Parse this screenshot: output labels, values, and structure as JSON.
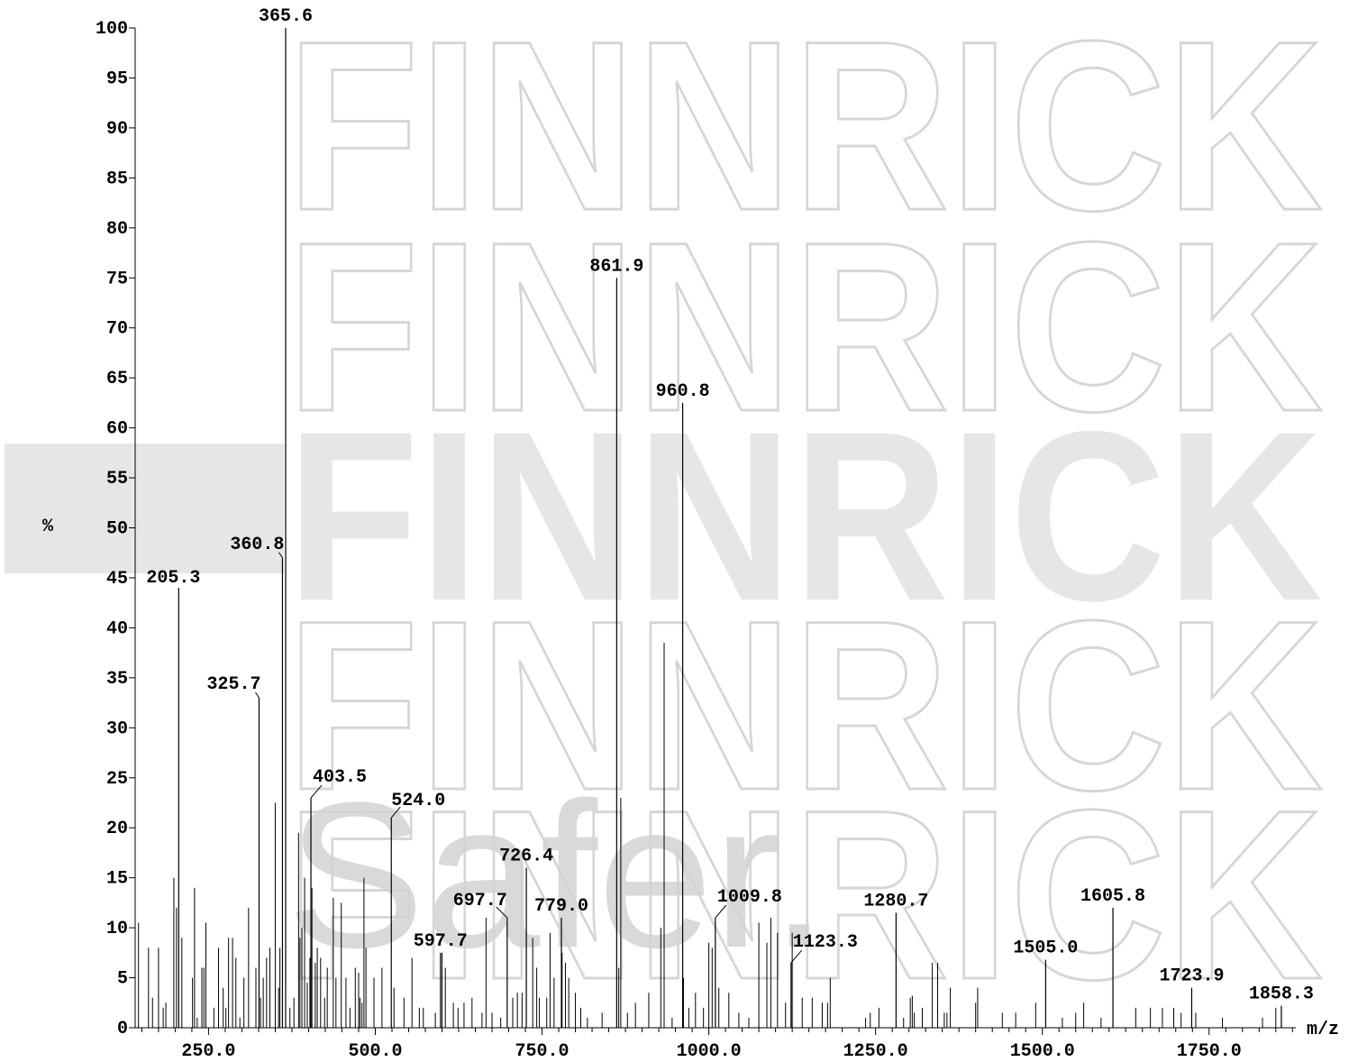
{
  "chart_data": {
    "type": "bar",
    "xlabel": "m/z",
    "ylabel": "%",
    "xlim": [
      140,
      1880
    ],
    "ylim": [
      0,
      100
    ],
    "x_ticks": [
      "250.0",
      "500.0",
      "750.0",
      "1000.0",
      "1250.0",
      "1500.0",
      "1750.0"
    ],
    "y_ticks": [
      "0",
      "5",
      "10",
      "15",
      "20",
      "25",
      "30",
      "35",
      "40",
      "45",
      "50",
      "55",
      "60",
      "65",
      "70",
      "75",
      "80",
      "85",
      "90",
      "95",
      "100"
    ],
    "labeled_peaks": [
      {
        "label": "365.6",
        "mz": 365.6,
        "intensity": 100
      },
      {
        "label": "861.9",
        "mz": 861.9,
        "intensity": 75
      },
      {
        "label": "960.8",
        "mz": 960.8,
        "intensity": 62.5
      },
      {
        "label": "360.8",
        "mz": 360.8,
        "intensity": 47
      },
      {
        "label": "205.3",
        "mz": 205.3,
        "intensity": 44
      },
      {
        "label": "325.7",
        "mz": 325.7,
        "intensity": 33
      },
      {
        "label": "403.5",
        "mz": 403.5,
        "intensity": 23
      },
      {
        "label": "524.0",
        "mz": 524.0,
        "intensity": 21
      },
      {
        "label": "726.4",
        "mz": 726.4,
        "intensity": 16
      },
      {
        "label": "697.7",
        "mz": 697.7,
        "intensity": 11
      },
      {
        "label": "779.0",
        "mz": 779.0,
        "intensity": 11
      },
      {
        "label": "1009.8",
        "mz": 1009.8,
        "intensity": 11
      },
      {
        "label": "1280.7",
        "mz": 1280.7,
        "intensity": 11.5
      },
      {
        "label": "1605.8",
        "mz": 1605.8,
        "intensity": 12
      },
      {
        "label": "597.7",
        "mz": 597.7,
        "intensity": 7.5
      },
      {
        "label": "1123.3",
        "mz": 1123.3,
        "intensity": 6.5
      },
      {
        "label": "1505.0",
        "mz": 1505.0,
        "intensity": 6.8
      },
      {
        "label": "1723.9",
        "mz": 1723.9,
        "intensity": 4
      },
      {
        "label": "1858.3",
        "mz": 1858.3,
        "intensity": 2.2
      }
    ],
    "minor_peaks": [
      [
        145,
        10.5
      ],
      [
        160,
        8
      ],
      [
        166,
        3
      ],
      [
        175,
        8
      ],
      [
        182,
        2
      ],
      [
        186,
        2.5
      ],
      [
        198,
        15
      ],
      [
        202,
        12
      ],
      [
        210,
        9
      ],
      [
        226,
        5
      ],
      [
        229,
        14
      ],
      [
        233,
        1
      ],
      [
        240,
        6
      ],
      [
        243,
        6
      ],
      [
        246,
        10.5
      ],
      [
        258,
        2
      ],
      [
        265,
        8
      ],
      [
        272,
        4
      ],
      [
        276,
        2
      ],
      [
        280,
        9
      ],
      [
        286,
        9
      ],
      [
        291,
        7
      ],
      [
        297,
        1
      ],
      [
        303,
        5
      ],
      [
        310,
        12
      ],
      [
        321,
        6
      ],
      [
        328,
        3
      ],
      [
        332,
        5
      ],
      [
        337,
        7
      ],
      [
        342,
        8
      ],
      [
        350,
        22.5
      ],
      [
        355,
        4
      ],
      [
        357,
        8
      ],
      [
        372,
        2
      ],
      [
        378,
        3
      ],
      [
        385,
        19.5
      ],
      [
        387,
        9
      ],
      [
        390,
        10
      ],
      [
        394,
        15
      ],
      [
        398,
        4.5
      ],
      [
        402,
        7
      ],
      [
        405,
        14
      ],
      [
        410,
        6.5
      ],
      [
        413,
        8
      ],
      [
        418,
        7
      ],
      [
        424,
        3
      ],
      [
        428,
        6
      ],
      [
        437,
        13
      ],
      [
        441,
        5
      ],
      [
        449,
        12.5
      ],
      [
        456,
        5
      ],
      [
        462,
        2
      ],
      [
        470,
        6
      ],
      [
        475,
        5.5
      ],
      [
        477,
        3
      ],
      [
        480,
        2.5
      ],
      [
        483,
        15
      ],
      [
        486,
        8
      ],
      [
        498,
        5
      ],
      [
        510,
        6
      ],
      [
        528,
        4
      ],
      [
        543,
        3
      ],
      [
        555,
        7
      ],
      [
        566,
        2
      ],
      [
        572,
        2
      ],
      [
        590,
        1.5
      ],
      [
        600,
        7.5
      ],
      [
        605,
        6
      ],
      [
        617,
        2.5
      ],
      [
        624,
        2
      ],
      [
        633,
        2.5
      ],
      [
        645,
        3
      ],
      [
        660,
        1.5
      ],
      [
        666,
        11
      ],
      [
        675,
        1.5
      ],
      [
        688,
        1
      ],
      [
        706,
        3
      ],
      [
        713,
        3.5
      ],
      [
        720,
        3.5
      ],
      [
        736,
        9
      ],
      [
        742,
        6
      ],
      [
        746,
        3
      ],
      [
        757,
        3
      ],
      [
        762,
        9.5
      ],
      [
        768,
        5
      ],
      [
        780,
        7.5
      ],
      [
        785,
        6.5
      ],
      [
        790,
        5
      ],
      [
        800,
        3.5
      ],
      [
        808,
        2
      ],
      [
        818,
        1
      ],
      [
        840,
        1.5
      ],
      [
        865,
        6
      ],
      [
        868,
        23
      ],
      [
        878,
        1.5
      ],
      [
        890,
        2.5
      ],
      [
        910,
        3.5
      ],
      [
        928,
        10
      ],
      [
        933,
        38.5
      ],
      [
        945,
        1
      ],
      [
        962,
        5
      ],
      [
        970,
        2
      ],
      [
        980,
        3.5
      ],
      [
        992,
        2
      ],
      [
        1000,
        8.5
      ],
      [
        1005,
        8
      ],
      [
        1015,
        4
      ],
      [
        1030,
        3.5
      ],
      [
        1045,
        1.5
      ],
      [
        1060,
        1
      ],
      [
        1075,
        10.5
      ],
      [
        1087,
        8.5
      ],
      [
        1093,
        11
      ],
      [
        1103,
        9.5
      ],
      [
        1115,
        2.5
      ],
      [
        1125,
        9.5
      ],
      [
        1140,
        3
      ],
      [
        1155,
        3
      ],
      [
        1170,
        2.5
      ],
      [
        1178,
        2.5
      ],
      [
        1182,
        5
      ],
      [
        1235,
        1
      ],
      [
        1242,
        1.5
      ],
      [
        1255,
        2
      ],
      [
        1292,
        1
      ],
      [
        1302,
        3
      ],
      [
        1305,
        3.2
      ],
      [
        1308,
        1.5
      ],
      [
        1320,
        2
      ],
      [
        1335,
        6.5
      ],
      [
        1343,
        6.5
      ],
      [
        1353,
        1.5
      ],
      [
        1357,
        1.5
      ],
      [
        1362,
        4
      ],
      [
        1400,
        2.5
      ],
      [
        1403,
        4
      ],
      [
        1440,
        1.5
      ],
      [
        1460,
        1.5
      ],
      [
        1490,
        2.5
      ],
      [
        1530,
        1
      ],
      [
        1550,
        1.5
      ],
      [
        1562,
        2.5
      ],
      [
        1588,
        1
      ],
      [
        1640,
        2
      ],
      [
        1662,
        2
      ],
      [
        1680,
        2
      ],
      [
        1697,
        2
      ],
      [
        1708,
        1.5
      ],
      [
        1730,
        1.5
      ],
      [
        1770,
        1
      ],
      [
        1830,
        1
      ],
      [
        1850,
        2
      ]
    ]
  },
  "watermark": {
    "brand": "FINNRICK",
    "slogan": "Safer."
  }
}
